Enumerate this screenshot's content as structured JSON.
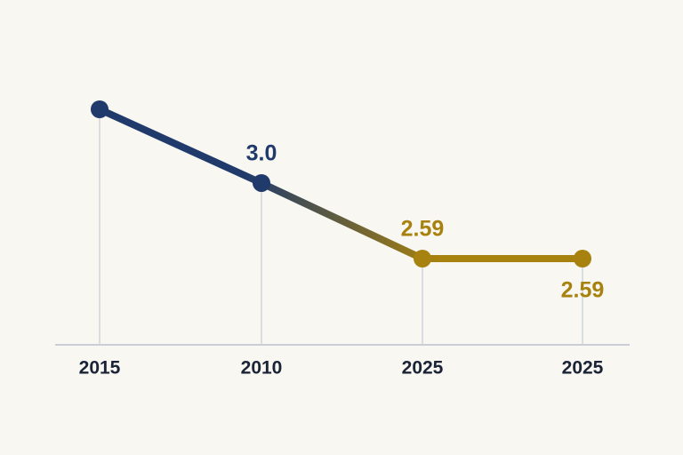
{
  "chart_data": {
    "type": "line",
    "categories": [
      "2015",
      "2010",
      "2025",
      "2025"
    ],
    "values": [
      3.4,
      3.0,
      2.59,
      2.59
    ],
    "value_labels": [
      null,
      "3.0",
      "2.59",
      "2.59"
    ],
    "colors": [
      "#1f3a6b",
      "#a8820e"
    ]
  }
}
